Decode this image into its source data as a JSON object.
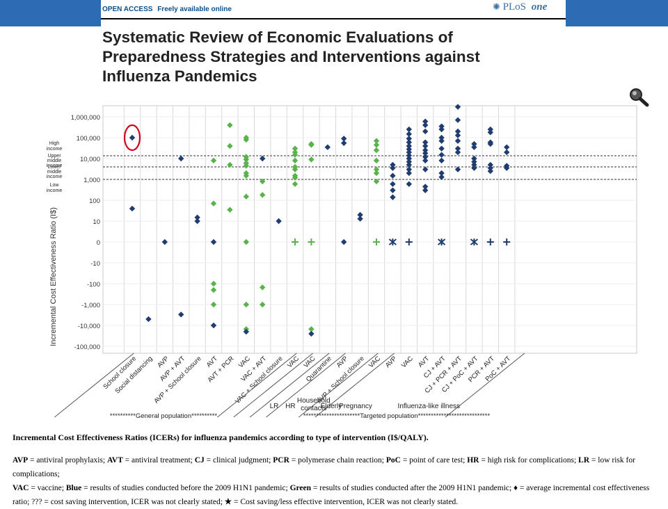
{
  "header": {
    "open_access": "OPEN ACCESS",
    "freely": "Freely available online",
    "plos": "PLoS",
    "one": "one"
  },
  "title": "Systematic Review of Economic Evaluations of Preparedness Strategies and Interventions against Influenza Pandemics",
  "colors": {
    "blue": "#1f3d6e",
    "green": "#5ab34a",
    "header_bar": "#2e6bb5",
    "highlight_circle": "#d0021b"
  },
  "chart_data": {
    "type": "scatter",
    "ylabel": "Incremental Cost Effectiveness Ratio (I$)",
    "y_ticks": [
      "1,000,000",
      "100,000",
      "10,000",
      "1,000",
      "100",
      "10",
      "0",
      "-10",
      "-100",
      "-1,000",
      "-10,000",
      "-100,000"
    ],
    "income_bands": [
      "High income",
      "Upper middle income",
      "Lower middle income",
      "Low income"
    ],
    "categories": [
      "School closure",
      "Social distancing",
      "AVP",
      "AVP + AVT",
      "AVP + School closure",
      "AVT",
      "AVT + PCR",
      "VAC",
      "VAC + AVT",
      "VAC + School closure",
      "VAC",
      "VAC",
      "Quarantine",
      "AVP",
      "AVP + School closure",
      "VAC",
      "AVP",
      "VAC",
      "AVT",
      "CJ + AVT",
      "CJ + PCR + AVT",
      "CJ + PoC + AVT",
      "PCR + AVT",
      "PoC + AVT"
    ],
    "groups": [
      {
        "label": "LR",
        "first": 10,
        "last": 10
      },
      {
        "label": "HR",
        "first": 11,
        "last": 11
      },
      {
        "label": "Household contacts",
        "first": 12,
        "last": 12
      },
      {
        "label": "Elderly",
        "first": 13,
        "last": 14
      },
      {
        "label": "Pregnancy",
        "first": 15,
        "last": 15
      },
      {
        "label": "Influenza-like illness",
        "first": 16,
        "last": 23
      }
    ],
    "populations": [
      "**********General population**********",
      "**********************Targeted population****************************"
    ],
    "points": [
      {
        "c": 0,
        "v": 100000,
        "s": "blue"
      },
      {
        "c": 0,
        "v": 40,
        "s": "blue"
      },
      {
        "c": 1,
        "v": -5000,
        "s": "blue"
      },
      {
        "c": 2,
        "v": 0,
        "s": "blue"
      },
      {
        "c": 3,
        "v": 10000,
        "s": "blue"
      },
      {
        "c": 3,
        "v": -3000,
        "s": "blue"
      },
      {
        "c": 4,
        "v": 15,
        "s": "blue"
      },
      {
        "c": 4,
        "v": 10,
        "s": "blue"
      },
      {
        "c": 5,
        "v": 8000,
        "s": "green"
      },
      {
        "c": 5,
        "v": 70,
        "s": "green"
      },
      {
        "c": 5,
        "v": 0,
        "s": "blue"
      },
      {
        "c": 5,
        "v": -100,
        "s": "green"
      },
      {
        "c": 5,
        "v": -200,
        "s": "green"
      },
      {
        "c": 5,
        "v": -1000,
        "s": "green"
      },
      {
        "c": 5,
        "v": -10000,
        "s": "blue"
      },
      {
        "c": 6,
        "v": 400000,
        "s": "green"
      },
      {
        "c": 6,
        "v": 40000,
        "s": "green"
      },
      {
        "c": 6,
        "v": 5000,
        "s": "green"
      },
      {
        "c": 6,
        "v": 35,
        "s": "green"
      },
      {
        "c": 7,
        "v": 100000,
        "s": "green"
      },
      {
        "c": 7,
        "v": 80000,
        "s": "green"
      },
      {
        "c": 7,
        "v": 12000,
        "s": "green"
      },
      {
        "c": 7,
        "v": 9000,
        "s": "green"
      },
      {
        "c": 7,
        "v": 6000,
        "s": "green"
      },
      {
        "c": 7,
        "v": 4500,
        "s": "green"
      },
      {
        "c": 7,
        "v": 2000,
        "s": "green"
      },
      {
        "c": 7,
        "v": 1500,
        "s": "green"
      },
      {
        "c": 7,
        "v": 150,
        "s": "green"
      },
      {
        "c": 7,
        "v": 0,
        "s": "green"
      },
      {
        "c": 7,
        "v": -1000,
        "s": "green"
      },
      {
        "c": 7,
        "v": -15000,
        "s": "green"
      },
      {
        "c": 7,
        "v": -20000,
        "s": "blue"
      },
      {
        "c": 8,
        "v": 10000,
        "s": "blue"
      },
      {
        "c": 8,
        "v": 800,
        "s": "green"
      },
      {
        "c": 8,
        "v": 180,
        "s": "green"
      },
      {
        "c": 8,
        "v": -150,
        "s": "green"
      },
      {
        "c": 8,
        "v": -1000,
        "s": "green"
      },
      {
        "c": 9,
        "v": 10,
        "s": "blue"
      },
      {
        "c": 10,
        "v": 30000,
        "s": "green"
      },
      {
        "c": 10,
        "v": 20000,
        "s": "green"
      },
      {
        "c": 10,
        "v": 15000,
        "s": "green"
      },
      {
        "c": 10,
        "v": 8000,
        "s": "green"
      },
      {
        "c": 10,
        "v": 4000,
        "s": "green"
      },
      {
        "c": 10,
        "v": 3000,
        "s": "green"
      },
      {
        "c": 10,
        "v": 1500,
        "s": "green"
      },
      {
        "c": 10,
        "v": 1200,
        "s": "green"
      },
      {
        "c": 10,
        "v": 600,
        "s": "green"
      },
      {
        "c": 10,
        "v": 0,
        "s": "green",
        "m": "plus"
      },
      {
        "c": 11,
        "v": 50000,
        "s": "green"
      },
      {
        "c": 11,
        "v": 45000,
        "s": "green"
      },
      {
        "c": 11,
        "v": 9000,
        "s": "green"
      },
      {
        "c": 11,
        "v": 0,
        "s": "green",
        "m": "plus"
      },
      {
        "c": 11,
        "v": -15000,
        "s": "green"
      },
      {
        "c": 11,
        "v": -25000,
        "s": "blue"
      },
      {
        "c": 12,
        "v": 35000,
        "s": "blue"
      },
      {
        "c": 13,
        "v": 90000,
        "s": "blue"
      },
      {
        "c": 13,
        "v": 55000,
        "s": "blue"
      },
      {
        "c": 13,
        "v": 0,
        "s": "blue"
      },
      {
        "c": 14,
        "v": 20,
        "s": "blue"
      },
      {
        "c": 14,
        "v": 13,
        "s": "blue"
      },
      {
        "c": 15,
        "v": 70000,
        "s": "green"
      },
      {
        "c": 15,
        "v": 45000,
        "s": "green"
      },
      {
        "c": 15,
        "v": 25000,
        "s": "green"
      },
      {
        "c": 15,
        "v": 8000,
        "s": "green"
      },
      {
        "c": 15,
        "v": 3000,
        "s": "green"
      },
      {
        "c": 15,
        "v": 2000,
        "s": "green"
      },
      {
        "c": 15,
        "v": 800,
        "s": "green"
      },
      {
        "c": 15,
        "v": 0,
        "s": "green",
        "m": "plus"
      },
      {
        "c": 16,
        "v": 5000,
        "s": "blue"
      },
      {
        "c": 16,
        "v": 3500,
        "s": "blue"
      },
      {
        "c": 16,
        "v": 1500,
        "s": "blue"
      },
      {
        "c": 16,
        "v": 600,
        "s": "blue"
      },
      {
        "c": 16,
        "v": 300,
        "s": "blue"
      },
      {
        "c": 16,
        "v": 140,
        "s": "blue"
      },
      {
        "c": 16,
        "v": 0,
        "s": "blue",
        "m": "x"
      },
      {
        "c": 17,
        "v": 250000,
        "s": "blue"
      },
      {
        "c": 17,
        "v": 150000,
        "s": "blue"
      },
      {
        "c": 17,
        "v": 90000,
        "s": "blue"
      },
      {
        "c": 17,
        "v": 60000,
        "s": "blue"
      },
      {
        "c": 17,
        "v": 40000,
        "s": "blue"
      },
      {
        "c": 17,
        "v": 28000,
        "s": "blue"
      },
      {
        "c": 17,
        "v": 20000,
        "s": "blue"
      },
      {
        "c": 17,
        "v": 14000,
        "s": "blue"
      },
      {
        "c": 17,
        "v": 10000,
        "s": "blue"
      },
      {
        "c": 17,
        "v": 7000,
        "s": "blue"
      },
      {
        "c": 17,
        "v": 5000,
        "s": "blue"
      },
      {
        "c": 17,
        "v": 3000,
        "s": "blue"
      },
      {
        "c": 17,
        "v": 2000,
        "s": "blue"
      },
      {
        "c": 17,
        "v": 600,
        "s": "blue"
      },
      {
        "c": 17,
        "v": 0,
        "s": "blue",
        "m": "plus"
      },
      {
        "c": 18,
        "v": 600000,
        "s": "blue"
      },
      {
        "c": 18,
        "v": 400000,
        "s": "blue"
      },
      {
        "c": 18,
        "v": 200000,
        "s": "blue"
      },
      {
        "c": 18,
        "v": 60000,
        "s": "blue"
      },
      {
        "c": 18,
        "v": 40000,
        "s": "blue"
      },
      {
        "c": 18,
        "v": 25000,
        "s": "blue"
      },
      {
        "c": 18,
        "v": 18000,
        "s": "blue"
      },
      {
        "c": 18,
        "v": 12000,
        "s": "blue"
      },
      {
        "c": 18,
        "v": 8000,
        "s": "blue"
      },
      {
        "c": 18,
        "v": 3000,
        "s": "blue"
      },
      {
        "c": 18,
        "v": 450,
        "s": "blue"
      },
      {
        "c": 18,
        "v": 300,
        "s": "blue"
      },
      {
        "c": 19,
        "v": 350000,
        "s": "blue"
      },
      {
        "c": 19,
        "v": 250000,
        "s": "blue"
      },
      {
        "c": 19,
        "v": 100000,
        "s": "blue"
      },
      {
        "c": 19,
        "v": 70000,
        "s": "blue"
      },
      {
        "c": 19,
        "v": 30000,
        "s": "blue"
      },
      {
        "c": 19,
        "v": 15000,
        "s": "blue"
      },
      {
        "c": 19,
        "v": 8000,
        "s": "blue"
      },
      {
        "c": 19,
        "v": 2000,
        "s": "blue"
      },
      {
        "c": 19,
        "v": 1300,
        "s": "blue"
      },
      {
        "c": 19,
        "v": 0,
        "s": "blue",
        "m": "x"
      },
      {
        "c": 20,
        "v": 3000000,
        "s": "blue"
      },
      {
        "c": 20,
        "v": 700000,
        "s": "blue"
      },
      {
        "c": 20,
        "v": 200000,
        "s": "blue"
      },
      {
        "c": 20,
        "v": 130000,
        "s": "blue"
      },
      {
        "c": 20,
        "v": 70000,
        "s": "blue"
      },
      {
        "c": 20,
        "v": 30000,
        "s": "blue"
      },
      {
        "c": 20,
        "v": 20000,
        "s": "blue"
      },
      {
        "c": 20,
        "v": 3000,
        "s": "blue"
      },
      {
        "c": 21,
        "v": 50000,
        "s": "blue"
      },
      {
        "c": 21,
        "v": 35000,
        "s": "blue"
      },
      {
        "c": 21,
        "v": 10000,
        "s": "blue"
      },
      {
        "c": 21,
        "v": 7000,
        "s": "blue"
      },
      {
        "c": 21,
        "v": 5000,
        "s": "blue"
      },
      {
        "c": 21,
        "v": 3500,
        "s": "blue"
      },
      {
        "c": 21,
        "v": 0,
        "s": "blue",
        "m": "x"
      },
      {
        "c": 22,
        "v": 250000,
        "s": "blue"
      },
      {
        "c": 22,
        "v": 180000,
        "s": "blue"
      },
      {
        "c": 22,
        "v": 60000,
        "s": "blue"
      },
      {
        "c": 22,
        "v": 50000,
        "s": "blue"
      },
      {
        "c": 22,
        "v": 5000,
        "s": "blue"
      },
      {
        "c": 22,
        "v": 3500,
        "s": "blue"
      },
      {
        "c": 22,
        "v": 2500,
        "s": "blue"
      },
      {
        "c": 22,
        "v": 0,
        "s": "blue",
        "m": "plus"
      },
      {
        "c": 23,
        "v": 35000,
        "s": "blue"
      },
      {
        "c": 23,
        "v": 20000,
        "s": "blue"
      },
      {
        "c": 23,
        "v": 4500,
        "s": "blue"
      },
      {
        "c": 23,
        "v": 3500,
        "s": "blue"
      },
      {
        "c": 23,
        "v": 0,
        "s": "blue",
        "m": "plus"
      }
    ],
    "highlighted": {
      "c": 0,
      "v": 100000
    }
  },
  "caption": {
    "title": "Incremental Cost Effectiveness Ratios (ICERs) for influenza pandemics according to type of intervention (I$/QALY).",
    "line1": [
      {
        "t": "AVP",
        "b": true
      },
      {
        "t": " = antiviral prophylaxis; "
      },
      {
        "t": "AVT",
        "b": true
      },
      {
        "t": " = antiviral treatment; "
      },
      {
        "t": "CJ",
        "b": true
      },
      {
        "t": " = clinical judgment; "
      },
      {
        "t": "PCR",
        "b": true
      },
      {
        "t": " = polymerase chain reaction; "
      },
      {
        "t": "PoC",
        "b": true
      },
      {
        "t": " = point of care test; "
      },
      {
        "t": "HR",
        "b": true
      },
      {
        "t": " = high risk for complications; "
      },
      {
        "t": "LR",
        "b": true
      },
      {
        "t": " = low risk for complications;"
      }
    ],
    "line2": [
      {
        "t": "VAC",
        "b": true
      },
      {
        "t": " = vaccine; "
      },
      {
        "t": "Blue",
        "b": true
      },
      {
        "t": " = results of studies conducted before the 2009 H1N1 pandemic; "
      },
      {
        "t": "Green",
        "b": true
      },
      {
        "t": " = results of studies conducted after the 2009 H1N1 pandemic; "
      },
      {
        "t": "♦",
        "b": true
      },
      {
        "t": " = average incremental cost effectiveness"
      }
    ],
    "line3": [
      {
        "t": "ratio; ??? = cost saving intervention, ICER was not clearly stated; "
      },
      {
        "t": "★",
        "b": true
      },
      {
        "t": " = Cost saving/less effective intervention, ICER was not clearly stated."
      }
    ]
  }
}
